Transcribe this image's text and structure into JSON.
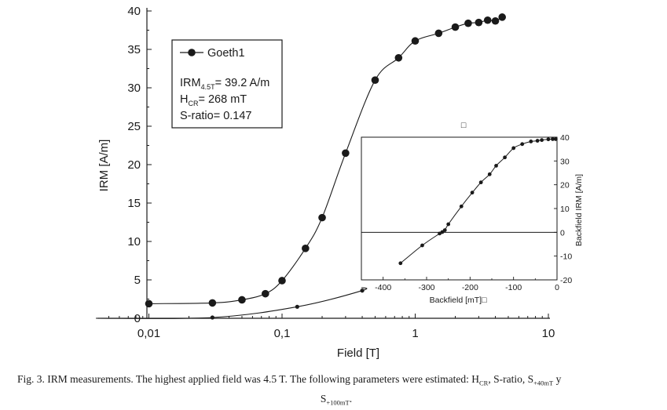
{
  "chart_data": [
    {
      "type": "scatter",
      "name": "main",
      "xscale": "log",
      "xlabel": "Field [T]",
      "ylabel": "IRM [A/m]",
      "xlim": [
        0.0045,
        10
      ],
      "ylim": [
        0,
        40
      ],
      "xticks": [
        0.01,
        0.1,
        1,
        10
      ],
      "xtick_labels": [
        "0,01",
        "0,1",
        "1",
        "10"
      ],
      "yticks": [
        0,
        5,
        10,
        15,
        20,
        25,
        30,
        35,
        40
      ],
      "ytick_labels": [
        "0",
        "5",
        "10",
        "15",
        "20",
        "25",
        "30",
        "35",
        "40"
      ],
      "series": [
        {
          "name": "Goeth1",
          "marker": "filled-circle",
          "x": [
            0.01,
            0.03,
            0.05,
            0.075,
            0.1,
            0.15,
            0.2,
            0.3,
            0.5,
            0.75,
            1.0,
            1.5,
            2.0,
            2.5,
            3.0,
            3.5,
            4.0,
            4.5
          ],
          "y": [
            1.9,
            2.0,
            2.4,
            3.2,
            4.9,
            9.1,
            13.1,
            21.5,
            31.0,
            33.9,
            36.1,
            37.1,
            37.9,
            38.4,
            38.5,
            38.8,
            38.7,
            39.2
          ]
        },
        {
          "name": "Backfield",
          "marker": "small-filled-circle",
          "x": [
            0.004,
            0.03,
            0.13,
            0.4
          ],
          "y": [
            0.0,
            0.1,
            1.5,
            3.6
          ]
        }
      ],
      "legend": {
        "placement": "top-left",
        "entry": "Goeth1",
        "lines": [
          {
            "main": "IRM",
            "sub": "4.5T",
            "rest": "= 39.2 A/m"
          },
          {
            "main": "H",
            "sub": "CR",
            "rest": "= 268 mT"
          },
          {
            "main": "S-ratio= 0.147",
            "sub": "",
            "rest": ""
          }
        ]
      }
    },
    {
      "type": "scatter",
      "name": "inset",
      "title": "□",
      "xlabel": "Backfield [mT]□",
      "ylabel": "Backfield IRM [A/m]",
      "ylabel_position": "right",
      "xlim": [
        -450,
        0
      ],
      "ylim": [
        -20,
        40
      ],
      "xticks": [
        -400,
        -300,
        -200,
        -100,
        0
      ],
      "xtick_labels": [
        "-400",
        "-300",
        "-200",
        "-100",
        "0"
      ],
      "yticks": [
        -20,
        -10,
        0,
        10,
        20,
        30,
        40
      ],
      "ytick_labels": [
        "-20",
        "-10",
        "0",
        "10",
        "20",
        "30",
        "40"
      ],
      "zero_line": true,
      "series": [
        {
          "name": "Backfield IRM",
          "x": [
            -360,
            -310,
            -270,
            -264,
            -258,
            -250,
            -220,
            -195,
            -175,
            -155,
            -140,
            -120,
            -100,
            -80,
            -60,
            -45,
            -35,
            -20,
            -10,
            -3
          ],
          "y": [
            -13,
            -5.5,
            -0.5,
            0.1,
            0.9,
            3.4,
            10.9,
            16.7,
            21.0,
            24.4,
            28.0,
            31.5,
            35.4,
            37.1,
            38.2,
            38.5,
            38.8,
            39.1,
            39.2,
            39.2
          ]
        }
      ]
    }
  ],
  "caption": {
    "text_before": "Fig. 3. IRM measurements. The highest applied field was 4.5 T. The following parameters were estimated: H",
    "sub_cr": "CR",
    "text_mid": ", S-ratio, S",
    "sub_40": "+40mT",
    "text_y": " y",
    "line2_s": "S",
    "sub_100": "+100mT",
    "line2_end": "."
  }
}
